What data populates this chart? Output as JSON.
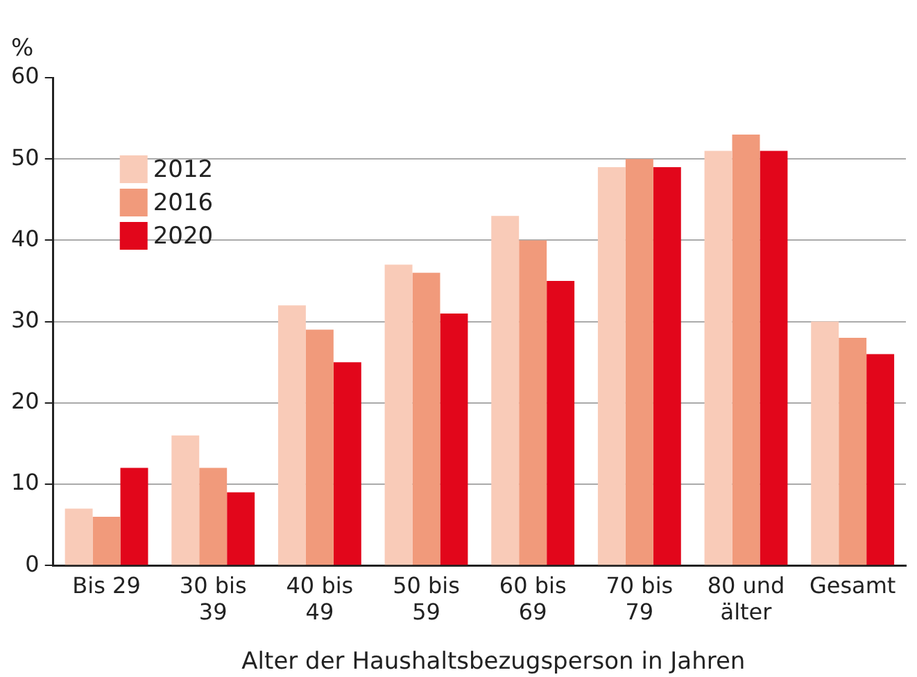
{
  "chart_data": {
    "type": "bar",
    "ylabel": "%",
    "xlabel": "Alter der Haushaltsbezugsperson in Jahren",
    "categories": [
      "Bis 29",
      "30 bis 39",
      "40 bis 49",
      "50 bis 59",
      "60 bis 69",
      "70 bis 79",
      "80 und älter",
      "Gesamt"
    ],
    "series": [
      {
        "name": "2012",
        "color": "#f9cbb8",
        "values": [
          7,
          16,
          32,
          37,
          43,
          49,
          51,
          30
        ]
      },
      {
        "name": "2016",
        "color": "#f19a7b",
        "values": [
          6,
          12,
          29,
          36,
          40,
          50,
          53,
          28
        ]
      },
      {
        "name": "2020",
        "color": "#e2061b",
        "values": [
          12,
          9,
          25,
          31,
          35,
          49,
          51,
          26
        ]
      }
    ],
    "ylim": [
      0,
      60
    ],
    "yticks": [
      0,
      10,
      20,
      30,
      40,
      50,
      60
    ],
    "grid": "y",
    "legend": "top left"
  }
}
